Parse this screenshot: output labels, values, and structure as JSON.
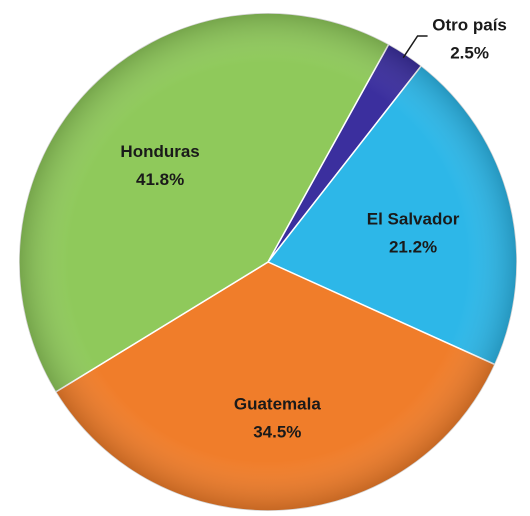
{
  "chart_data": {
    "type": "pie",
    "categories": [
      "Otro país",
      "El Salvador",
      "Guatemala",
      "Honduras"
    ],
    "values": [
      2.5,
      21.2,
      34.5,
      41.8
    ],
    "value_labels": [
      "2.5%",
      "21.2%",
      "34.5%",
      "41.8%"
    ],
    "colors": [
      "#3b2f9e",
      "#2db7e8",
      "#f07d2a",
      "#8fc95b"
    ]
  }
}
